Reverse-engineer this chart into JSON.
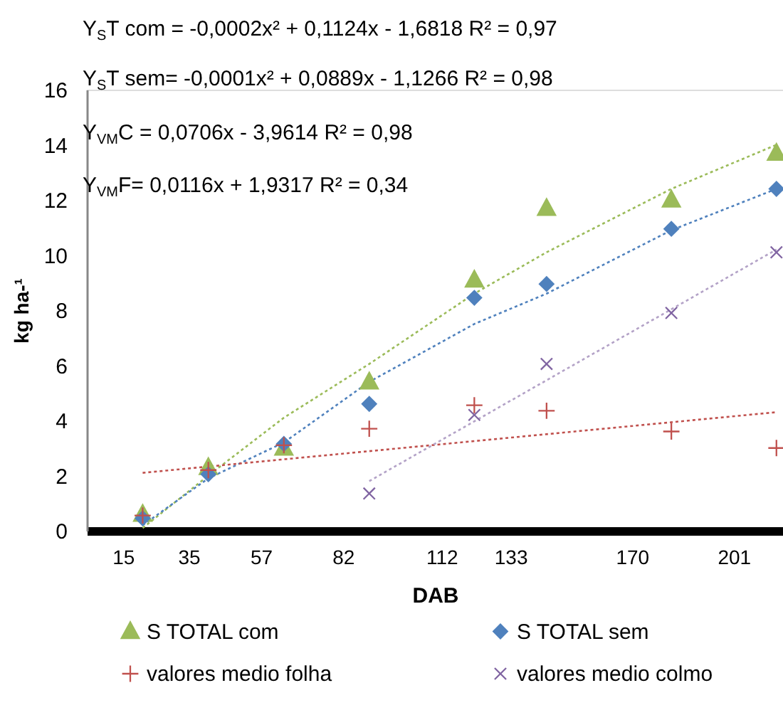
{
  "chart_data": {
    "type": "scatter",
    "xlabel": "DAB",
    "ylabel": "kg ha-¹",
    "xlim": [
      4,
      216
    ],
    "xticks": [
      15,
      35,
      57,
      82,
      112,
      133,
      170,
      201
    ],
    "ylim": [
      0,
      16
    ],
    "yticks": [
      0,
      2,
      4,
      6,
      8,
      10,
      12,
      14,
      16
    ],
    "grid": false,
    "legend": "bottom",
    "annotations": [
      "Y$_{S}$T com = -0,0002x² + 0,1124x - 1,6818  R² = 0,97",
      "Y$_{S}$T sem= -0,0001x² + 0,0889x - 1,1266  R² = 0,98",
      "Y$_{VM}$C = 0,0706x - 3,9614  R² = 0,98",
      "Y$_{VM}$F= 0,0116x + 1,9317  R² = 0,34"
    ],
    "series": [
      {
        "name": "S TOTAL com",
        "type": "scatter",
        "marker": "triangle",
        "color": "#9bbb59",
        "x": [
          21,
          41,
          64,
          90,
          122,
          144,
          182,
          214
        ],
        "values": [
          0.6,
          2.3,
          3.0,
          5.4,
          9.1,
          11.7,
          12.0,
          13.7
        ]
      },
      {
        "name": "S TOTAL sem",
        "type": "scatter",
        "marker": "diamond",
        "color": "#4f81bd",
        "x": [
          21,
          41,
          64,
          90,
          122,
          144,
          182,
          214
        ],
        "values": [
          0.45,
          2.05,
          3.15,
          4.6,
          8.45,
          8.95,
          10.95,
          12.4
        ]
      },
      {
        "name": "valores medio folha",
        "type": "scatter",
        "marker": "plus",
        "color": "#c0504d",
        "x": [
          21,
          41,
          64,
          90,
          122,
          144,
          182,
          214
        ],
        "values": [
          0.55,
          2.2,
          3.1,
          3.7,
          4.55,
          4.35,
          3.6,
          3.0
        ]
      },
      {
        "name": "valores medio colmo",
        "type": "scatter",
        "marker": "cross",
        "color": "#8064a2",
        "x": [
          90,
          122,
          144,
          182,
          214
        ],
        "values": [
          1.35,
          4.2,
          6.05,
          7.9,
          10.1
        ]
      },
      {
        "type": "line",
        "line_style": "dotted",
        "color": "#9bbb59",
        "x": [
          21,
          41,
          64,
          90,
          122,
          144,
          182,
          214
        ],
        "values": [
          0.1,
          2.0,
          4.1,
          6.05,
          8.6,
          10.1,
          12.4,
          14.0
        ]
      },
      {
        "type": "line",
        "line_style": "dotted",
        "color": "#4f81bd",
        "x": [
          21,
          41,
          64,
          90,
          122,
          144,
          182,
          214
        ],
        "values": [
          0.2,
          1.9,
          3.2,
          5.4,
          7.5,
          8.6,
          10.9,
          12.4
        ]
      },
      {
        "type": "line",
        "line_style": "dotted",
        "color": "#c0504d",
        "x": [
          21,
          214
        ],
        "values": [
          2.1,
          4.3
        ]
      },
      {
        "type": "line",
        "line_style": "dotted",
        "color": "#b3a2c7",
        "x": [
          90,
          214
        ],
        "values": [
          1.8,
          10.2
        ]
      }
    ]
  }
}
